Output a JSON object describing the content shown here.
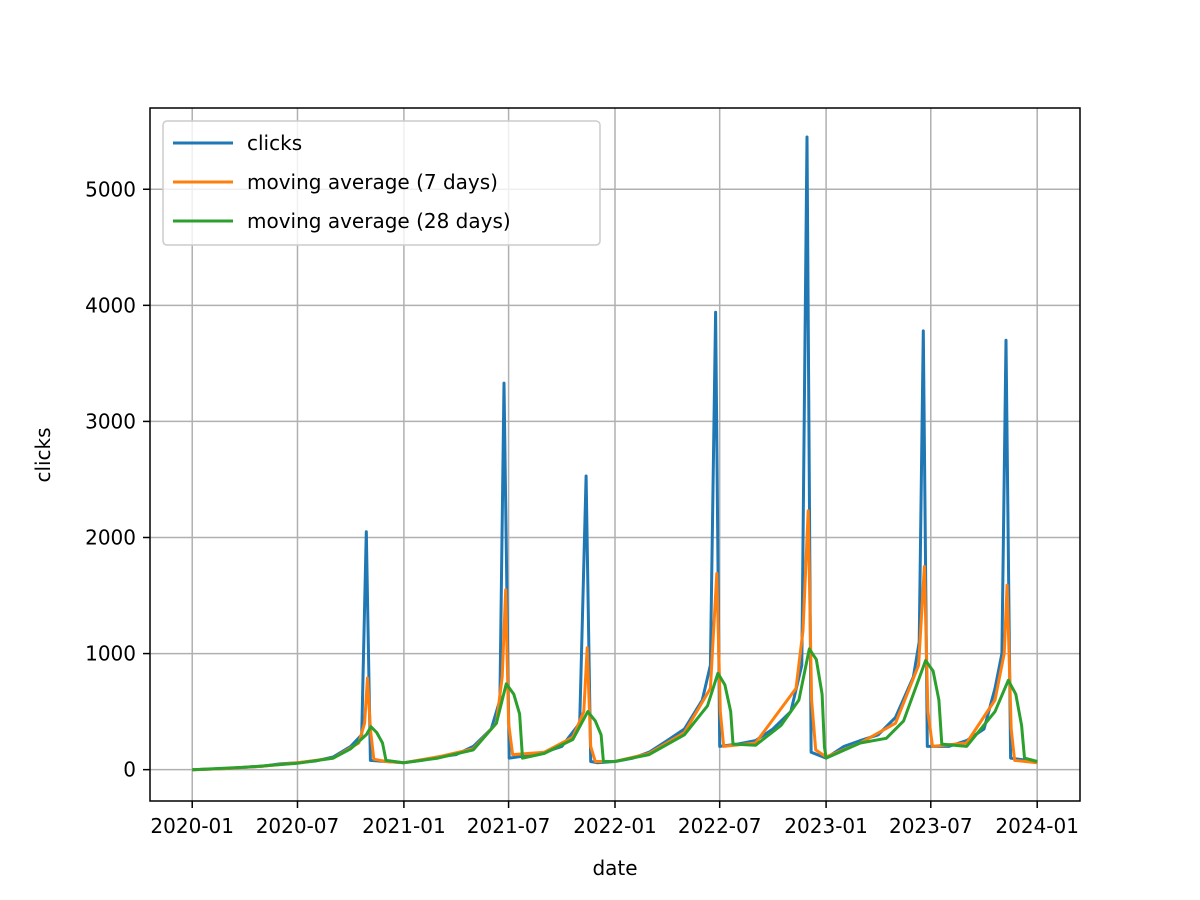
{
  "chart_data": {
    "type": "line",
    "xlabel": "date",
    "ylabel": "clicks",
    "xlim": [
      "2019-10-20",
      "2024-03-15"
    ],
    "ylim": [
      -270,
      5700
    ],
    "grid": true,
    "legend_position": "top-left",
    "x_ticks": [
      "2020-01",
      "2020-07",
      "2021-01",
      "2021-07",
      "2022-01",
      "2022-07",
      "2023-01",
      "2023-07",
      "2024-01"
    ],
    "y_ticks": [
      0,
      1000,
      2000,
      3000,
      4000,
      5000
    ],
    "series": [
      {
        "name": "clicks",
        "color": "#1f77b4",
        "points": [
          [
            "2020-01-01",
            0
          ],
          [
            "2020-02-01",
            5
          ],
          [
            "2020-03-01",
            10
          ],
          [
            "2020-04-01",
            20
          ],
          [
            "2020-05-01",
            30
          ],
          [
            "2020-06-01",
            50
          ],
          [
            "2020-07-01",
            60
          ],
          [
            "2020-08-01",
            75
          ],
          [
            "2020-09-01",
            110
          ],
          [
            "2020-10-01",
            200
          ],
          [
            "2020-10-20",
            300
          ],
          [
            "2020-10-28",
            2050
          ],
          [
            "2020-11-04",
            80
          ],
          [
            "2020-12-01",
            70
          ],
          [
            "2021-01-01",
            60
          ],
          [
            "2021-02-01",
            80
          ],
          [
            "2021-03-01",
            110
          ],
          [
            "2021-04-01",
            130
          ],
          [
            "2021-05-01",
            200
          ],
          [
            "2021-06-01",
            350
          ],
          [
            "2021-06-16",
            600
          ],
          [
            "2021-06-23",
            3330
          ],
          [
            "2021-07-02",
            100
          ],
          [
            "2021-08-01",
            120
          ],
          [
            "2021-09-01",
            150
          ],
          [
            "2021-10-01",
            200
          ],
          [
            "2021-11-01",
            400
          ],
          [
            "2021-11-12",
            2530
          ],
          [
            "2021-11-20",
            70
          ],
          [
            "2021-12-01",
            60
          ],
          [
            "2022-01-01",
            70
          ],
          [
            "2022-02-01",
            100
          ],
          [
            "2022-03-01",
            150
          ],
          [
            "2022-04-01",
            250
          ],
          [
            "2022-05-01",
            350
          ],
          [
            "2022-06-01",
            600
          ],
          [
            "2022-06-15",
            900
          ],
          [
            "2022-06-24",
            3940
          ],
          [
            "2022-07-01",
            200
          ],
          [
            "2022-08-01",
            220
          ],
          [
            "2022-09-01",
            250
          ],
          [
            "2022-10-01",
            350
          ],
          [
            "2022-11-01",
            500
          ],
          [
            "2022-11-20",
            900
          ],
          [
            "2022-11-29",
            5450
          ],
          [
            "2022-12-06",
            150
          ],
          [
            "2023-01-01",
            100
          ],
          [
            "2023-02-01",
            200
          ],
          [
            "2023-03-01",
            250
          ],
          [
            "2023-04-01",
            300
          ],
          [
            "2023-05-01",
            450
          ],
          [
            "2023-06-01",
            800
          ],
          [
            "2023-06-11",
            1100
          ],
          [
            "2023-06-18",
            3780
          ],
          [
            "2023-06-25",
            200
          ],
          [
            "2023-08-01",
            200
          ],
          [
            "2023-09-01",
            250
          ],
          [
            "2023-10-01",
            350
          ],
          [
            "2023-10-20",
            700
          ],
          [
            "2023-11-01",
            1000
          ],
          [
            "2023-11-08",
            3700
          ],
          [
            "2023-11-16",
            100
          ],
          [
            "2023-12-15",
            80
          ],
          [
            "2024-01-01",
            60
          ]
        ]
      },
      {
        "name": "moving average (7 days)",
        "color": "#ff7f0e",
        "points": [
          [
            "2020-01-01",
            0
          ],
          [
            "2020-03-01",
            10
          ],
          [
            "2020-05-01",
            30
          ],
          [
            "2020-07-01",
            60
          ],
          [
            "2020-09-01",
            100
          ],
          [
            "2020-10-15",
            230
          ],
          [
            "2020-10-25",
            400
          ],
          [
            "2020-10-30",
            790
          ],
          [
            "2020-11-04",
            350
          ],
          [
            "2020-11-10",
            90
          ],
          [
            "2020-12-01",
            70
          ],
          [
            "2021-01-01",
            60
          ],
          [
            "2021-03-01",
            110
          ],
          [
            "2021-05-01",
            180
          ],
          [
            "2021-06-10",
            400
          ],
          [
            "2021-06-20",
            800
          ],
          [
            "2021-06-26",
            1550
          ],
          [
            "2021-07-01",
            400
          ],
          [
            "2021-07-08",
            130
          ],
          [
            "2021-09-01",
            150
          ],
          [
            "2021-10-20",
            280
          ],
          [
            "2021-11-08",
            500
          ],
          [
            "2021-11-14",
            1050
          ],
          [
            "2021-11-20",
            200
          ],
          [
            "2021-11-28",
            70
          ],
          [
            "2022-01-01",
            70
          ],
          [
            "2022-03-01",
            140
          ],
          [
            "2022-05-01",
            320
          ],
          [
            "2022-06-15",
            700
          ],
          [
            "2022-06-26",
            1690
          ],
          [
            "2022-07-02",
            500
          ],
          [
            "2022-07-08",
            200
          ],
          [
            "2022-09-01",
            230
          ],
          [
            "2022-11-10",
            700
          ],
          [
            "2022-11-22",
            1200
          ],
          [
            "2022-12-01",
            2230
          ],
          [
            "2022-12-07",
            600
          ],
          [
            "2022-12-14",
            170
          ],
          [
            "2023-01-01",
            110
          ],
          [
            "2023-03-01",
            230
          ],
          [
            "2023-05-01",
            400
          ],
          [
            "2023-06-10",
            900
          ],
          [
            "2023-06-20",
            1750
          ],
          [
            "2023-06-26",
            500
          ],
          [
            "2023-07-04",
            200
          ],
          [
            "2023-09-01",
            230
          ],
          [
            "2023-10-20",
            600
          ],
          [
            "2023-11-05",
            1000
          ],
          [
            "2023-11-10",
            1590
          ],
          [
            "2023-11-17",
            350
          ],
          [
            "2023-11-23",
            80
          ],
          [
            "2024-01-01",
            60
          ]
        ]
      },
      {
        "name": "moving average (28 days)",
        "color": "#2ca02c",
        "points": [
          [
            "2020-01-01",
            0
          ],
          [
            "2020-04-01",
            20
          ],
          [
            "2020-07-01",
            55
          ],
          [
            "2020-09-01",
            100
          ],
          [
            "2020-10-01",
            180
          ],
          [
            "2020-10-28",
            300
          ],
          [
            "2020-11-05",
            370
          ],
          [
            "2020-11-15",
            320
          ],
          [
            "2020-11-25",
            230
          ],
          [
            "2020-12-01",
            80
          ],
          [
            "2021-01-01",
            60
          ],
          [
            "2021-03-01",
            100
          ],
          [
            "2021-05-01",
            170
          ],
          [
            "2021-06-10",
            400
          ],
          [
            "2021-06-27",
            740
          ],
          [
            "2021-07-10",
            650
          ],
          [
            "2021-07-20",
            480
          ],
          [
            "2021-07-25",
            100
          ],
          [
            "2021-09-01",
            140
          ],
          [
            "2021-10-20",
            260
          ],
          [
            "2021-11-15",
            500
          ],
          [
            "2021-11-28",
            420
          ],
          [
            "2021-12-08",
            300
          ],
          [
            "2021-12-12",
            70
          ],
          [
            "2022-01-01",
            70
          ],
          [
            "2022-03-01",
            130
          ],
          [
            "2022-05-01",
            300
          ],
          [
            "2022-06-10",
            550
          ],
          [
            "2022-06-28",
            830
          ],
          [
            "2022-07-10",
            730
          ],
          [
            "2022-07-20",
            500
          ],
          [
            "2022-07-24",
            220
          ],
          [
            "2022-09-01",
            210
          ],
          [
            "2022-10-15",
            380
          ],
          [
            "2022-11-15",
            600
          ],
          [
            "2022-12-03",
            1040
          ],
          [
            "2022-12-15",
            950
          ],
          [
            "2022-12-25",
            650
          ],
          [
            "2022-12-29",
            200
          ],
          [
            "2023-01-01",
            100
          ],
          [
            "2023-03-01",
            230
          ],
          [
            "2023-04-15",
            270
          ],
          [
            "2023-05-15",
            420
          ],
          [
            "2023-06-22",
            940
          ],
          [
            "2023-07-05",
            850
          ],
          [
            "2023-07-15",
            600
          ],
          [
            "2023-07-20",
            220
          ],
          [
            "2023-09-01",
            200
          ],
          [
            "2023-10-20",
            500
          ],
          [
            "2023-11-12",
            770
          ],
          [
            "2023-11-25",
            650
          ],
          [
            "2023-12-05",
            380
          ],
          [
            "2023-12-10",
            100
          ],
          [
            "2024-01-01",
            70
          ]
        ]
      }
    ]
  }
}
